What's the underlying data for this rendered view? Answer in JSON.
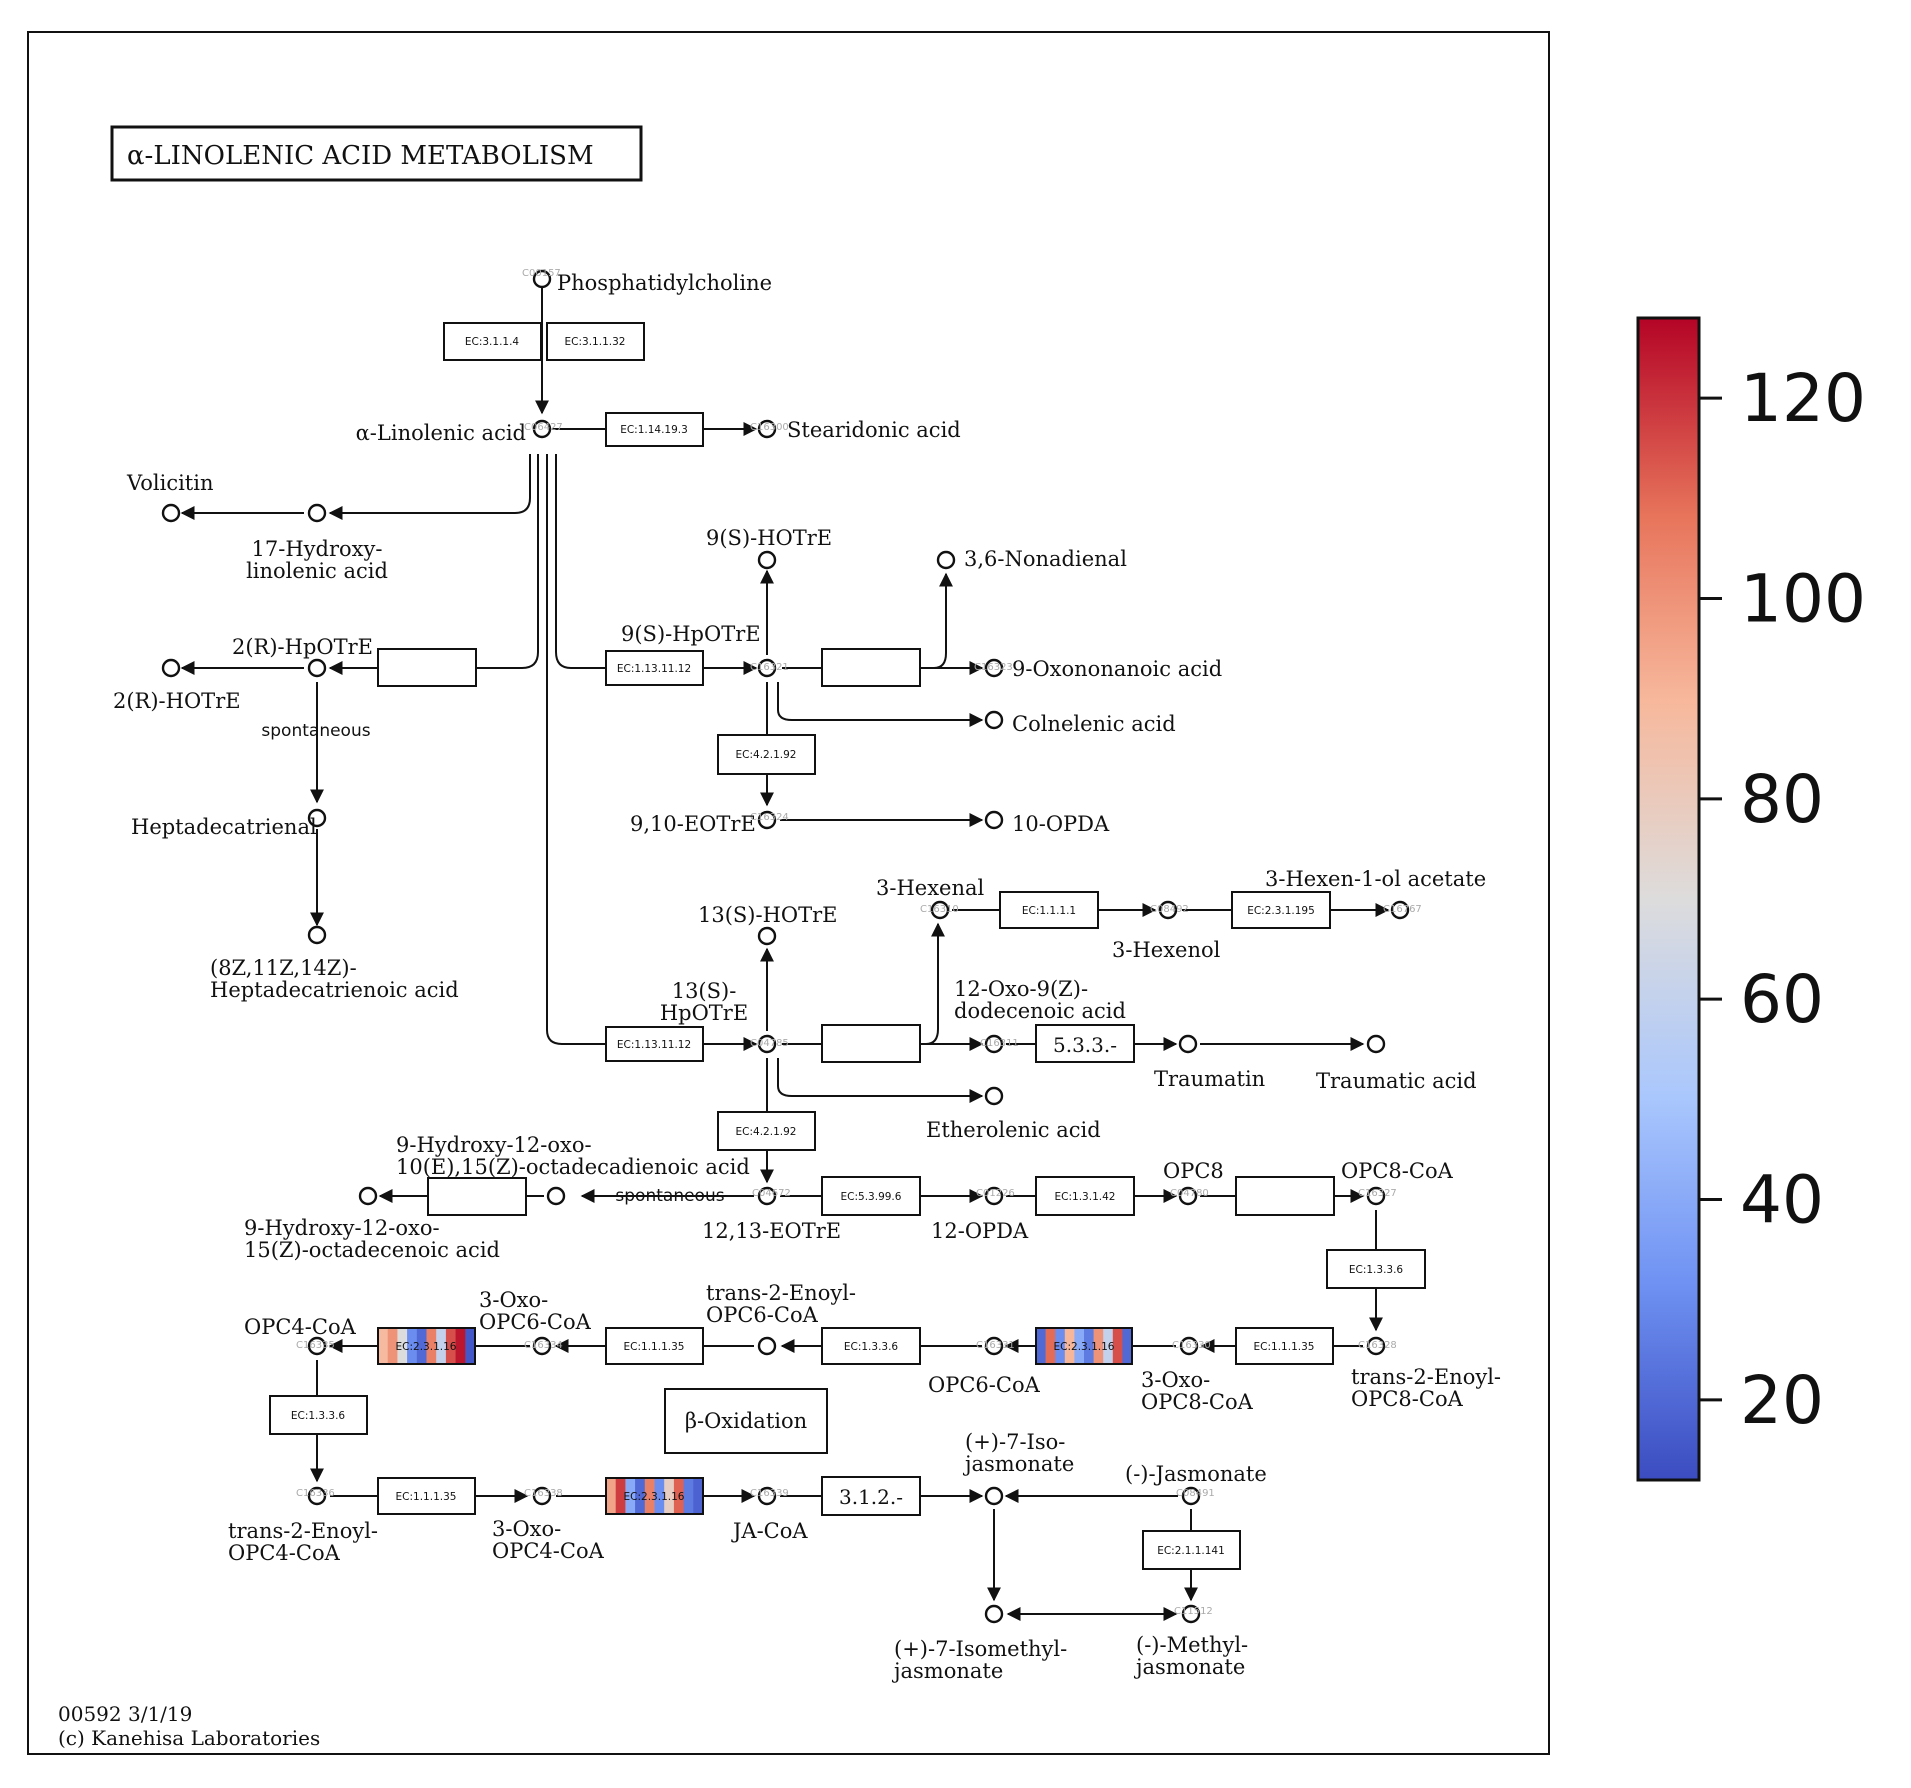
{
  "title": "α-LINOLENIC ACID METABOLISM",
  "footer": {
    "map_id": "00592 3/1/19",
    "copyright": "(c) Kanehisa Laboratories"
  },
  "colorbar": {
    "ticks": [
      "20",
      "40",
      "60",
      "80",
      "100",
      "120"
    ],
    "range": [
      12,
      128
    ],
    "colors": [
      "#3b4cc0",
      "#6f92f3",
      "#aac7fd",
      "#dddcdc",
      "#f7b89c",
      "#e7745b",
      "#b40426"
    ]
  },
  "compounds": {
    "phosphatidylcholine": "Phosphatidylcholine",
    "alpha_linolenic": "α-Linolenic acid",
    "stearidonic": "Stearidonic acid",
    "volicitin": "Volicitin",
    "hydroxy17": "17-Hydroxy- linolenic acid",
    "hpotre2r": "2(R)-HpOTrE",
    "hotre2r": "2(R)-HOTrE",
    "heptadecatrienal": "Heptadecatrienal",
    "heptadecatrienoic": "(8Z,11Z,14Z)- Heptadecatrienoic acid",
    "hotre9s": "9(S)-HOTrE",
    "hpotre9s": "9(S)-HpOTrE",
    "nonadienal": "3,6-Nonadienal",
    "oxononanoic": "9-Oxononanoic acid",
    "colnelenic": "Colnelenic acid",
    "eotre910": "9,10-EOTrE",
    "opda10": "10-OPDA",
    "hexenal": "3-Hexenal",
    "hexenol": "3-Hexenol",
    "hexenylacetate": "3-Hexen-1-ol acetate",
    "hotre13s": "13(S)-HOTrE",
    "hpotre13s": "13(S)- HpOTrE",
    "oxododecenoic": "12-Oxo-9(Z)- dodecenoic acid",
    "traumatin": "Traumatin",
    "traumatic": "Traumatic acid",
    "etherolenic": "Etherolenic acid",
    "hydroxyoxo_dec": "9-Hydroxy-12-oxo- 10(E),15(Z)-octadecadienoic acid",
    "hydroxyoxo_15": "9-Hydroxy-12-oxo- 15(Z)-octadecenoic acid",
    "eotre1213": "12,13-EOTrE",
    "opda12": "12-OPDA",
    "opc8": "OPC8",
    "opc8coa": "OPC8-CoA",
    "opc4coa": "OPC4-CoA",
    "oxoopc6coa": "3-Oxo- OPC6-CoA",
    "enoylopc6coa": "trans-2-Enoyl- OPC6-CoA",
    "opc6coa": "OPC6-CoA",
    "oxoopc8coa": "3-Oxo- OPC8-CoA",
    "enoylopc8coa": "trans-2-Enoyl- OPC8-CoA",
    "enoylopc4coa": "trans-2-Enoyl- OPC4-CoA",
    "oxoopc4coa": "3-Oxo- OPC4-CoA",
    "jacoa": "JA-CoA",
    "isojasmonate": "(+)-7-Iso- jasmonate",
    "jasmonate": "(-)-Jasmonate",
    "isomethyljasmonate": "(+)-7-Isomethyl- jasmonate",
    "methyljasmonate": "(-)-Methyl- jasmonate"
  },
  "compound_ids": {
    "c1": "C00157",
    "c2": "C06427",
    "c3": "C16300",
    "c4": "C16321",
    "c5": "C16323",
    "c6": "C04785",
    "c7": "C16310",
    "c8": "C08492",
    "c9": "C16767",
    "c10": "C16311",
    "c11": "C04672",
    "c12": "C01226",
    "c13": "C04780",
    "c14": "C16327",
    "c15": "C16328",
    "c16": "C16330",
    "c17": "C16331",
    "c18": "C16334",
    "c19": "C16335",
    "c20": "C16336",
    "c21": "C16338",
    "c22": "C16339",
    "c23": "C08491",
    "c24": "C11512",
    "c25": "C16324"
  },
  "enzymes": {
    "e1": "EC:3.1.1.4",
    "e2": "EC:3.1.1.32",
    "e3": "EC:1.14.19.3",
    "e4": "EC:1.13.11.12",
    "e5": "EC:4.2.1.92",
    "e6": "EC:1.1.1.1",
    "e7": "EC:2.3.1.195",
    "e8": "EC:1.13.11.12",
    "e9": "5.3.3.-",
    "e10": "EC:4.2.1.92",
    "e11": "EC:5.3.99.6",
    "e12": "EC:1.3.1.42",
    "e13": "EC:1.3.3.6",
    "e14": "EC:1.1.1.35",
    "e15": "EC:2.3.1.16",
    "e16": "EC:1.3.3.6",
    "e17": "EC:2.3.1.16",
    "e18": "EC:1.1.1.35",
    "e19": "EC:1.1.1.35",
    "e20": "EC:1.3.3.6",
    "e21": "EC:1.1.1.35",
    "e22": "EC:2.3.1.16",
    "e23": "3.1.2.-",
    "e24": "EC:2.1.1.141"
  },
  "spontaneous": "spontaneous",
  "beta_oxidation": "β-Oxidation",
  "heatmap_values": {
    "acaa_left": [
      88,
      100,
      70,
      30,
      20,
      105,
      60,
      115,
      125,
      15
    ],
    "acaa_mid": [
      20,
      110,
      30,
      90,
      40,
      25,
      100,
      60,
      115,
      20
    ],
    "acaa_bottom": [
      95,
      118,
      40,
      20,
      105,
      30,
      78,
      112,
      25,
      18
    ]
  }
}
